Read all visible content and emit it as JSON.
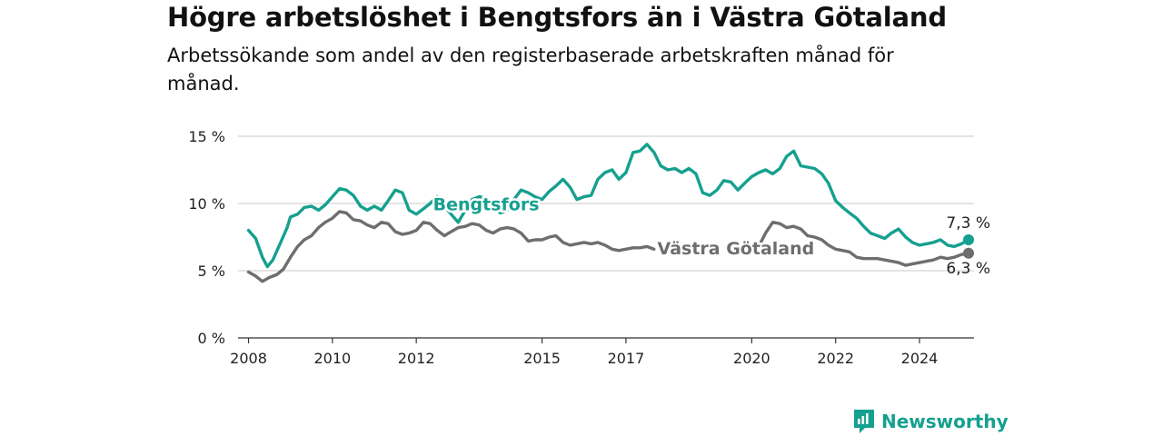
{
  "title": "Högre arbetslöshet i Bengtsfors än i Västra Götaland",
  "subtitle": "Arbetssökande som andel av den registerbaserade arbetskraften månad för månad.",
  "brand": {
    "name": "Newsworthy",
    "icon": "newsworthy-logo-icon",
    "color": "#15a08f"
  },
  "chart_data": {
    "type": "line",
    "x_unit": "year (decimal)",
    "xlim": [
      2007.75,
      2025.3
    ],
    "ylim": [
      0,
      15
    ],
    "y_ticks": [
      0,
      5,
      10,
      15
    ],
    "y_tick_labels": [
      "0 %",
      "5 %",
      "10 %",
      "15 %"
    ],
    "x_ticks": [
      2008,
      2010,
      2012,
      2015,
      2017,
      2020,
      2022,
      2024
    ],
    "x_tick_labels": [
      "2008",
      "2010",
      "2012",
      "2015",
      "2017",
      "2020",
      "2022",
      "2024"
    ],
    "grid": "horizontal",
    "series": [
      {
        "name": "Bengtsfors",
        "color": "#15a08f",
        "end_label": "7,3 %",
        "points": [
          [
            2008.0,
            8.0
          ],
          [
            2008.17,
            7.4
          ],
          [
            2008.33,
            6.0
          ],
          [
            2008.45,
            5.3
          ],
          [
            2008.58,
            5.8
          ],
          [
            2008.75,
            7.0
          ],
          [
            2008.92,
            8.2
          ],
          [
            2009.0,
            9.0
          ],
          [
            2009.17,
            9.2
          ],
          [
            2009.33,
            9.7
          ],
          [
            2009.5,
            9.8
          ],
          [
            2009.67,
            9.5
          ],
          [
            2009.83,
            9.9
          ],
          [
            2010.0,
            10.5
          ],
          [
            2010.17,
            11.1
          ],
          [
            2010.33,
            11.0
          ],
          [
            2010.5,
            10.6
          ],
          [
            2010.67,
            9.8
          ],
          [
            2010.83,
            9.5
          ],
          [
            2011.0,
            9.8
          ],
          [
            2011.17,
            9.5
          ],
          [
            2011.33,
            10.2
          ],
          [
            2011.5,
            11.0
          ],
          [
            2011.67,
            10.8
          ],
          [
            2011.83,
            9.5
          ],
          [
            2012.0,
            9.2
          ],
          [
            2012.17,
            9.6
          ],
          [
            2012.33,
            10.0
          ],
          [
            2012.5,
            10.5
          ],
          [
            2012.67,
            9.8
          ],
          [
            2012.83,
            9.2
          ],
          [
            2013.0,
            8.6
          ],
          [
            2013.17,
            9.5
          ],
          [
            2013.33,
            10.3
          ],
          [
            2013.5,
            10.5
          ],
          [
            2013.67,
            10.4
          ],
          [
            2013.83,
            9.8
          ],
          [
            2014.0,
            9.3
          ],
          [
            2014.17,
            9.5
          ],
          [
            2014.33,
            10.3
          ],
          [
            2014.5,
            11.0
          ],
          [
            2014.67,
            10.8
          ],
          [
            2014.83,
            10.5
          ],
          [
            2015.0,
            10.3
          ],
          [
            2015.17,
            10.9
          ],
          [
            2015.33,
            11.3
          ],
          [
            2015.5,
            11.8
          ],
          [
            2015.67,
            11.2
          ],
          [
            2015.83,
            10.3
          ],
          [
            2016.0,
            10.5
          ],
          [
            2016.17,
            10.6
          ],
          [
            2016.33,
            11.8
          ],
          [
            2016.5,
            12.3
          ],
          [
            2016.67,
            12.5
          ],
          [
            2016.83,
            11.8
          ],
          [
            2017.0,
            12.3
          ],
          [
            2017.17,
            13.8
          ],
          [
            2017.33,
            13.9
          ],
          [
            2017.5,
            14.4
          ],
          [
            2017.67,
            13.8
          ],
          [
            2017.83,
            12.8
          ],
          [
            2018.0,
            12.5
          ],
          [
            2018.17,
            12.6
          ],
          [
            2018.33,
            12.3
          ],
          [
            2018.5,
            12.6
          ],
          [
            2018.67,
            12.2
          ],
          [
            2018.83,
            10.8
          ],
          [
            2019.0,
            10.6
          ],
          [
            2019.17,
            11.0
          ],
          [
            2019.33,
            11.7
          ],
          [
            2019.5,
            11.6
          ],
          [
            2019.67,
            11.0
          ],
          [
            2019.83,
            11.5
          ],
          [
            2020.0,
            12.0
          ],
          [
            2020.17,
            12.3
          ],
          [
            2020.33,
            12.5
          ],
          [
            2020.5,
            12.2
          ],
          [
            2020.67,
            12.6
          ],
          [
            2020.83,
            13.5
          ],
          [
            2021.0,
            13.9
          ],
          [
            2021.17,
            12.8
          ],
          [
            2021.33,
            12.7
          ],
          [
            2021.5,
            12.6
          ],
          [
            2021.67,
            12.2
          ],
          [
            2021.83,
            11.5
          ],
          [
            2022.0,
            10.2
          ],
          [
            2022.17,
            9.7
          ],
          [
            2022.33,
            9.3
          ],
          [
            2022.5,
            8.9
          ],
          [
            2022.67,
            8.3
          ],
          [
            2022.83,
            7.8
          ],
          [
            2023.0,
            7.6
          ],
          [
            2023.17,
            7.4
          ],
          [
            2023.33,
            7.8
          ],
          [
            2023.5,
            8.1
          ],
          [
            2023.67,
            7.5
          ],
          [
            2023.83,
            7.1
          ],
          [
            2024.0,
            6.9
          ],
          [
            2024.17,
            7.0
          ],
          [
            2024.33,
            7.1
          ],
          [
            2024.5,
            7.3
          ],
          [
            2024.67,
            6.9
          ],
          [
            2024.83,
            6.8
          ],
          [
            2025.0,
            7.0
          ],
          [
            2025.17,
            7.3
          ]
        ]
      },
      {
        "name": "Västra Götaland",
        "color": "#6e6e6e",
        "end_label": "6,3 %",
        "points": [
          [
            2008.0,
            4.9
          ],
          [
            2008.17,
            4.6
          ],
          [
            2008.33,
            4.2
          ],
          [
            2008.5,
            4.5
          ],
          [
            2008.67,
            4.7
          ],
          [
            2008.83,
            5.1
          ],
          [
            2009.0,
            6.0
          ],
          [
            2009.17,
            6.8
          ],
          [
            2009.33,
            7.3
          ],
          [
            2009.5,
            7.6
          ],
          [
            2009.67,
            8.2
          ],
          [
            2009.83,
            8.6
          ],
          [
            2010.0,
            8.9
          ],
          [
            2010.17,
            9.4
          ],
          [
            2010.33,
            9.3
          ],
          [
            2010.5,
            8.8
          ],
          [
            2010.67,
            8.7
          ],
          [
            2010.83,
            8.4
          ],
          [
            2011.0,
            8.2
          ],
          [
            2011.17,
            8.6
          ],
          [
            2011.33,
            8.5
          ],
          [
            2011.5,
            7.9
          ],
          [
            2011.67,
            7.7
          ],
          [
            2011.83,
            7.8
          ],
          [
            2012.0,
            8.0
          ],
          [
            2012.17,
            8.6
          ],
          [
            2012.33,
            8.5
          ],
          [
            2012.5,
            8.0
          ],
          [
            2012.67,
            7.6
          ],
          [
            2012.83,
            7.9
          ],
          [
            2013.0,
            8.2
          ],
          [
            2013.17,
            8.3
          ],
          [
            2013.33,
            8.5
          ],
          [
            2013.5,
            8.4
          ],
          [
            2013.67,
            8.0
          ],
          [
            2013.83,
            7.8
          ],
          [
            2014.0,
            8.1
          ],
          [
            2014.17,
            8.2
          ],
          [
            2014.33,
            8.1
          ],
          [
            2014.5,
            7.8
          ],
          [
            2014.67,
            7.2
          ],
          [
            2014.83,
            7.3
          ],
          [
            2015.0,
            7.3
          ],
          [
            2015.17,
            7.5
          ],
          [
            2015.33,
            7.6
          ],
          [
            2015.5,
            7.1
          ],
          [
            2015.67,
            6.9
          ],
          [
            2015.83,
            7.0
          ],
          [
            2016.0,
            7.1
          ],
          [
            2016.17,
            7.0
          ],
          [
            2016.33,
            7.1
          ],
          [
            2016.5,
            6.9
          ],
          [
            2016.67,
            6.6
          ],
          [
            2016.83,
            6.5
          ],
          [
            2017.0,
            6.6
          ],
          [
            2017.17,
            6.7
          ],
          [
            2017.33,
            6.7
          ],
          [
            2017.5,
            6.8
          ],
          [
            2017.67,
            6.6
          ],
          null,
          [
            2020.2,
            7.0
          ],
          [
            2020.33,
            7.8
          ],
          [
            2020.5,
            8.6
          ],
          [
            2020.67,
            8.5
          ],
          [
            2020.83,
            8.2
          ],
          [
            2021.0,
            8.3
          ],
          [
            2021.17,
            8.1
          ],
          [
            2021.33,
            7.6
          ],
          [
            2021.5,
            7.5
          ],
          [
            2021.67,
            7.3
          ],
          [
            2021.83,
            6.9
          ],
          [
            2022.0,
            6.6
          ],
          [
            2022.17,
            6.5
          ],
          [
            2022.33,
            6.4
          ],
          [
            2022.5,
            6.0
          ],
          [
            2022.67,
            5.9
          ],
          [
            2022.83,
            5.9
          ],
          [
            2023.0,
            5.9
          ],
          [
            2023.17,
            5.8
          ],
          [
            2023.33,
            5.7
          ],
          [
            2023.5,
            5.6
          ],
          [
            2023.67,
            5.4
          ],
          [
            2023.83,
            5.5
          ],
          [
            2024.0,
            5.6
          ],
          [
            2024.17,
            5.7
          ],
          [
            2024.33,
            5.8
          ],
          [
            2024.5,
            6.0
          ],
          [
            2024.67,
            5.9
          ],
          [
            2024.83,
            6.0
          ],
          [
            2025.0,
            6.2
          ],
          [
            2025.17,
            6.3
          ]
        ]
      }
    ],
    "labels": [
      {
        "text": "Bengtsfors",
        "series": 0,
        "at": [
          2012.4,
          9.5
        ],
        "color": "#15a08f"
      },
      {
        "text": "Västra Götaland",
        "series": 1,
        "at": [
          2017.75,
          6.2
        ],
        "color": "#6e6e6e"
      }
    ]
  }
}
